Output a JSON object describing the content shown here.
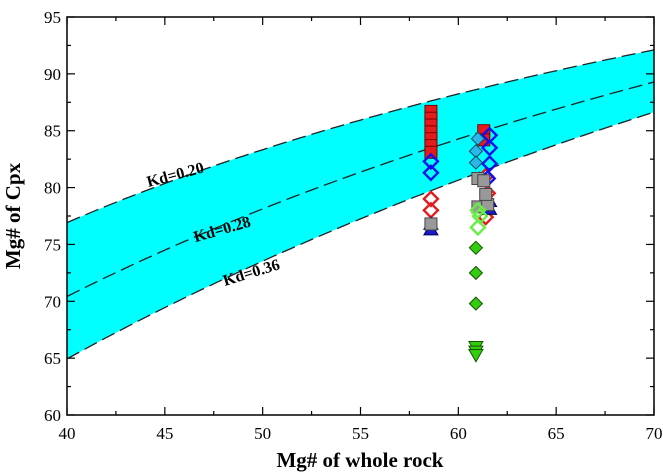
{
  "chart_data": {
    "type": "scatter",
    "xlabel": "Mg# of whole rock",
    "ylabel": "Mg# of Cpx",
    "xlim": [
      40,
      70
    ],
    "ylim": [
      60,
      95
    ],
    "x_ticks": [
      "40",
      "45",
      "50",
      "55",
      "60",
      "65",
      "70"
    ],
    "y_ticks": [
      "60",
      "65",
      "70",
      "75",
      "80",
      "85",
      "90",
      "95"
    ],
    "grid": false,
    "band_color": "#00ffff",
    "curves": [
      {
        "label": "Kd=0.20",
        "Kd": 0.2,
        "label_at": [
          45.6,
          80.7
        ],
        "label_angle": -15
      },
      {
        "label": "Kd=0.28",
        "Kd": 0.28,
        "label_at": [
          48.0,
          75.9
        ],
        "label_angle": -16
      },
      {
        "label": "Kd=0.36",
        "Kd": 0.36,
        "label_at": [
          49.5,
          72.1
        ],
        "label_angle": -17
      }
    ],
    "series": [
      {
        "marker": "square",
        "fill": "#e41a1c",
        "stroke": "#7a0000",
        "points": [
          [
            58.6,
            86.7
          ],
          [
            58.6,
            86.1
          ],
          [
            58.6,
            85.5
          ],
          [
            58.6,
            84.9
          ],
          [
            58.6,
            84.3
          ],
          [
            58.6,
            83.7
          ],
          [
            58.6,
            83.1
          ],
          [
            61.3,
            85.0
          ],
          [
            61.3,
            84.2
          ]
        ]
      },
      {
        "marker": "diamond-open",
        "fill": "none",
        "stroke": "#e41a1c",
        "points": [
          [
            58.6,
            79.0
          ],
          [
            58.6,
            78.0
          ],
          [
            61.4,
            81.0
          ],
          [
            61.5,
            79.5
          ],
          [
            61.4,
            78.6
          ],
          [
            61.4,
            77.4
          ]
        ]
      },
      {
        "marker": "diamond-open",
        "fill": "none",
        "stroke": "#1010ee",
        "points": [
          [
            58.6,
            82.3
          ],
          [
            58.6,
            81.3
          ],
          [
            61.6,
            84.6
          ],
          [
            61.6,
            83.5
          ],
          [
            61.6,
            82.1
          ],
          [
            61.5,
            80.8
          ]
        ]
      },
      {
        "marker": "diamond",
        "fill": "#29b6e8",
        "stroke": "#0a4a66",
        "points": [
          [
            61.0,
            84.3
          ],
          [
            60.9,
            83.2
          ],
          [
            60.9,
            82.2
          ]
        ]
      },
      {
        "marker": "triangle",
        "fill": "#1a1acc",
        "stroke": "#00005a",
        "points": [
          [
            58.6,
            76.8
          ],
          [
            58.6,
            76.3
          ],
          [
            61.6,
            78.8
          ],
          [
            61.6,
            78.1
          ]
        ]
      },
      {
        "marker": "square",
        "fill": "#999999",
        "stroke": "#444444",
        "points": [
          [
            58.6,
            76.8
          ],
          [
            61.0,
            80.8
          ],
          [
            61.3,
            80.6
          ],
          [
            61.0,
            78.3
          ],
          [
            61.5,
            78.5
          ],
          [
            61.4,
            79.4
          ]
        ]
      },
      {
        "marker": "diamond-open",
        "fill": "none",
        "stroke": "#66ee44",
        "points": [
          [
            61.0,
            78.0
          ],
          [
            61.0,
            76.5
          ],
          [
            61.1,
            77.5
          ]
        ]
      },
      {
        "marker": "diamond",
        "fill": "#33cc11",
        "stroke": "#115500",
        "points": [
          [
            60.9,
            74.7
          ],
          [
            60.9,
            72.5
          ],
          [
            60.9,
            69.8
          ]
        ]
      },
      {
        "marker": "triangle-down",
        "fill": "#33cc11",
        "stroke": "#115500",
        "points": [
          [
            60.9,
            66.0
          ],
          [
            60.9,
            65.6
          ],
          [
            60.9,
            65.3
          ]
        ]
      }
    ]
  }
}
